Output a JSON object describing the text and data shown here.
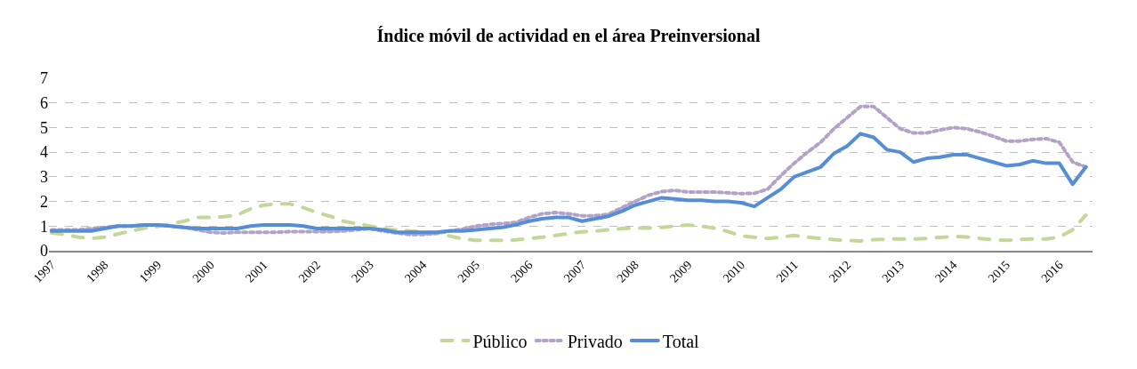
{
  "chart_data": {
    "type": "line",
    "title": "Índice móvil de actividad en el área Preinversional",
    "categories": [
      "1997",
      null,
      null,
      null,
      "1998",
      null,
      null,
      null,
      "1999",
      null,
      null,
      null,
      "2000",
      null,
      null,
      null,
      "2001",
      null,
      null,
      null,
      "2002",
      null,
      null,
      null,
      "2003",
      null,
      null,
      null,
      "2004",
      null,
      null,
      null,
      "2005",
      null,
      null,
      null,
      "2006",
      null,
      null,
      null,
      "2007",
      null,
      null,
      null,
      "2008",
      null,
      null,
      null,
      "2009",
      null,
      null,
      null,
      "2010",
      null,
      null,
      null,
      "2011",
      null,
      null,
      null,
      "2012",
      null,
      null,
      null,
      "2013",
      null,
      null,
      null,
      "2014",
      null,
      null,
      null,
      "2015",
      null,
      null,
      null,
      "2016",
      null,
      null
    ],
    "series": [
      {
        "name": "Público",
        "color": "#c4d79b",
        "line_style": "dashed",
        "values": [
          0.72,
          0.66,
          0.55,
          0.5,
          0.55,
          0.68,
          0.8,
          0.92,
          0.98,
          1.1,
          1.2,
          1.35,
          1.35,
          1.38,
          1.45,
          1.7,
          1.85,
          1.9,
          1.9,
          1.75,
          1.55,
          1.4,
          1.2,
          1.1,
          1.0,
          0.9,
          0.84,
          0.8,
          0.78,
          0.72,
          0.6,
          0.48,
          0.42,
          0.42,
          0.42,
          0.44,
          0.5,
          0.55,
          0.62,
          0.7,
          0.77,
          0.8,
          0.85,
          0.9,
          0.92,
          0.92,
          0.95,
          1.0,
          1.05,
          1.0,
          0.92,
          0.78,
          0.6,
          0.55,
          0.5,
          0.55,
          0.62,
          0.55,
          0.5,
          0.45,
          0.42,
          0.4,
          0.45,
          0.47,
          0.48,
          0.48,
          0.5,
          0.54,
          0.58,
          0.56,
          0.5,
          0.45,
          0.42,
          0.46,
          0.48,
          0.48,
          0.55,
          0.85,
          1.45
        ]
      },
      {
        "name": "Privado",
        "color": "#b3a2c7",
        "line_style": "dotted",
        "values": [
          0.85,
          0.85,
          0.85,
          0.9,
          0.95,
          1.0,
          1.0,
          1.05,
          1.05,
          1.0,
          0.95,
          0.85,
          0.75,
          0.72,
          0.75,
          0.75,
          0.75,
          0.75,
          0.78,
          0.78,
          0.78,
          0.78,
          0.8,
          0.85,
          0.9,
          0.8,
          0.72,
          0.66,
          0.66,
          0.7,
          0.8,
          0.88,
          1.0,
          1.07,
          1.1,
          1.15,
          1.35,
          1.5,
          1.55,
          1.5,
          1.42,
          1.42,
          1.48,
          1.75,
          2.0,
          2.25,
          2.4,
          2.45,
          2.38,
          2.38,
          2.38,
          2.35,
          2.32,
          2.33,
          2.5,
          3.05,
          3.55,
          4.0,
          4.4,
          4.95,
          5.4,
          5.85,
          5.85,
          5.4,
          4.95,
          4.78,
          4.78,
          4.9,
          5.0,
          4.95,
          4.82,
          4.65,
          4.45,
          4.45,
          4.52,
          4.55,
          4.4,
          3.6,
          3.4
        ]
      },
      {
        "name": "Total",
        "color": "#558ed5",
        "line_style": "solid",
        "values": [
          0.8,
          0.8,
          0.8,
          0.8,
          0.9,
          1.0,
          1.0,
          1.05,
          1.05,
          1.0,
          0.95,
          0.9,
          0.9,
          0.9,
          0.9,
          1.0,
          1.05,
          1.05,
          1.05,
          1.0,
          0.9,
          0.9,
          0.9,
          0.9,
          0.9,
          0.85,
          0.75,
          0.75,
          0.75,
          0.75,
          0.8,
          0.8,
          0.85,
          0.9,
          0.95,
          1.05,
          1.2,
          1.3,
          1.35,
          1.35,
          1.2,
          1.3,
          1.4,
          1.6,
          1.85,
          2.0,
          2.15,
          2.1,
          2.05,
          2.05,
          2.0,
          2.0,
          1.95,
          1.8,
          2.15,
          2.5,
          3.0,
          3.2,
          3.4,
          3.95,
          4.25,
          4.75,
          4.6,
          4.1,
          4.0,
          3.6,
          3.75,
          3.8,
          3.9,
          3.9,
          3.75,
          3.6,
          3.45,
          3.5,
          3.65,
          3.55,
          3.55,
          2.7,
          3.4
        ]
      }
    ],
    "ylim": [
      0,
      7
    ],
    "yticks": [
      0,
      1,
      2,
      3,
      4,
      5,
      6,
      7
    ],
    "grid": "y",
    "legend": "bottom",
    "marker": "none"
  }
}
